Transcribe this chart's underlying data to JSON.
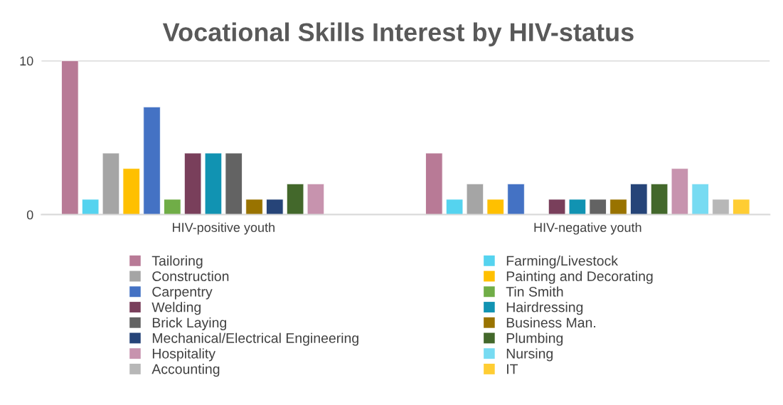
{
  "chart_data": {
    "type": "bar",
    "title": "Vocational Skills Interest by HIV-status",
    "categories": [
      "HIV-positive youth",
      "HIV-negative youth"
    ],
    "series": [
      {
        "name": "Tailoring",
        "color": "#b87a96",
        "values": [
          10,
          4
        ]
      },
      {
        "name": "Farming/Livestock",
        "color": "#55d3ef",
        "values": [
          1,
          1
        ]
      },
      {
        "name": "Construction",
        "color": "#a5a5a5",
        "values": [
          4,
          2
        ]
      },
      {
        "name": "Painting and Decorating",
        "color": "#ffc000",
        "values": [
          3,
          1
        ]
      },
      {
        "name": "Carpentry",
        "color": "#4472c4",
        "values": [
          7,
          2
        ]
      },
      {
        "name": "Tin Smith",
        "color": "#70ad47",
        "values": [
          1,
          null
        ]
      },
      {
        "name": "Welding",
        "color": "#793f5b",
        "values": [
          4,
          1
        ]
      },
      {
        "name": "Hairdressing",
        "color": "#1193b2",
        "values": [
          4,
          1
        ]
      },
      {
        "name": "Brick Laying",
        "color": "#636363",
        "values": [
          4,
          1
        ]
      },
      {
        "name": "Business Man.",
        "color": "#997300",
        "values": [
          1,
          1
        ]
      },
      {
        "name": "Mechanical/Electrical Engineering",
        "color": "#264478",
        "values": [
          1,
          2
        ]
      },
      {
        "name": "Plumbing",
        "color": "#43682b",
        "values": [
          2,
          2
        ]
      },
      {
        "name": "Hospitality",
        "color": "#c793ae",
        "values": [
          2,
          3
        ]
      },
      {
        "name": "Nursing",
        "color": "#77dbf2",
        "values": [
          null,
          2
        ]
      },
      {
        "name": "Accounting",
        "color": "#b7b7b7",
        "values": [
          null,
          1
        ]
      },
      {
        "name": "IT",
        "color": "#ffcd33",
        "values": [
          null,
          1
        ]
      }
    ],
    "ylim": [
      0,
      10
    ],
    "yticks": [
      0,
      10
    ],
    "grid": "y",
    "legend": "bottom"
  }
}
